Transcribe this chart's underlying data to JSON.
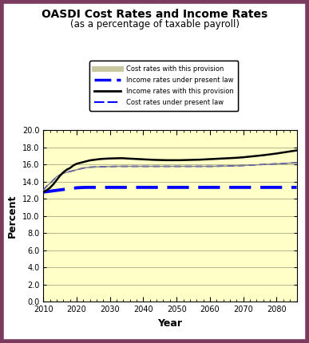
{
  "title_line1": "OASDI Cost Rates and Income Rates",
  "title_line2": "(as a percentage of taxable payroll)",
  "xlabel": "Year",
  "ylabel": "Percent",
  "xlim": [
    2010,
    2086
  ],
  "ylim": [
    0.0,
    20.0
  ],
  "yticks": [
    0.0,
    2.0,
    4.0,
    6.0,
    8.0,
    10.0,
    12.0,
    14.0,
    16.0,
    18.0,
    20.0
  ],
  "xticks": [
    2010,
    2020,
    2030,
    2040,
    2050,
    2060,
    2070,
    2080
  ],
  "plot_bg": "#FFFFC8",
  "outer_bg": "#ffffff",
  "border_color": "#7b3b5e",
  "legend_labels": [
    "Cost rates with this provision",
    "Income rates under present law",
    "Income rates with this provision",
    "Cost rates under present law"
  ],
  "years": [
    2010,
    2011,
    2012,
    2013,
    2014,
    2015,
    2016,
    2017,
    2018,
    2019,
    2020,
    2021,
    2022,
    2023,
    2024,
    2025,
    2026,
    2027,
    2028,
    2029,
    2030,
    2031,
    2032,
    2033,
    2034,
    2035,
    2036,
    2037,
    2038,
    2039,
    2040,
    2041,
    2042,
    2043,
    2044,
    2045,
    2046,
    2047,
    2048,
    2049,
    2050,
    2051,
    2052,
    2053,
    2054,
    2055,
    2056,
    2057,
    2058,
    2059,
    2060,
    2061,
    2062,
    2063,
    2064,
    2065,
    2066,
    2067,
    2068,
    2069,
    2070,
    2071,
    2072,
    2073,
    2074,
    2075,
    2076,
    2077,
    2078,
    2079,
    2080,
    2081,
    2082,
    2083,
    2084,
    2085,
    2086
  ],
  "cost_with_provision": [
    13.0,
    13.5,
    13.8,
    14.2,
    14.6,
    14.8,
    15.0,
    15.1,
    15.2,
    15.3,
    15.4,
    15.5,
    15.6,
    15.65,
    15.7,
    15.72,
    15.74,
    15.75,
    15.76,
    15.77,
    15.78,
    15.79,
    15.8,
    15.8,
    15.8,
    15.8,
    15.8,
    15.8,
    15.8,
    15.8,
    15.8,
    15.8,
    15.8,
    15.8,
    15.8,
    15.8,
    15.8,
    15.8,
    15.8,
    15.8,
    15.8,
    15.8,
    15.8,
    15.8,
    15.8,
    15.8,
    15.8,
    15.8,
    15.8,
    15.8,
    15.8,
    15.8,
    15.81,
    15.82,
    15.83,
    15.84,
    15.85,
    15.86,
    15.87,
    15.88,
    15.9,
    15.92,
    15.94,
    15.96,
    15.98,
    16.0,
    16.02,
    16.04,
    16.06,
    16.08,
    16.1,
    16.12,
    16.14,
    16.16,
    16.18,
    16.2,
    16.22
  ],
  "income_under_present_law": [
    12.8,
    12.85,
    12.9,
    12.95,
    13.0,
    13.05,
    13.1,
    13.15,
    13.2,
    13.25,
    13.3,
    13.32,
    13.34,
    13.35,
    13.35,
    13.35,
    13.35,
    13.35,
    13.35,
    13.35,
    13.35,
    13.35,
    13.35,
    13.35,
    13.35,
    13.35,
    13.35,
    13.35,
    13.35,
    13.35,
    13.35,
    13.35,
    13.35,
    13.35,
    13.35,
    13.35,
    13.35,
    13.35,
    13.35,
    13.35,
    13.35,
    13.35,
    13.35,
    13.35,
    13.35,
    13.35,
    13.35,
    13.35,
    13.35,
    13.35,
    13.35,
    13.35,
    13.35,
    13.35,
    13.35,
    13.35,
    13.35,
    13.35,
    13.35,
    13.35,
    13.35,
    13.35,
    13.35,
    13.35,
    13.35,
    13.35,
    13.35,
    13.35,
    13.35,
    13.35,
    13.35,
    13.35,
    13.35,
    13.35,
    13.35,
    13.35,
    13.35
  ],
  "income_with_provision": [
    12.8,
    13.0,
    13.3,
    13.7,
    14.2,
    14.7,
    15.1,
    15.4,
    15.6,
    15.9,
    16.1,
    16.2,
    16.3,
    16.4,
    16.5,
    16.55,
    16.6,
    16.65,
    16.68,
    16.7,
    16.72,
    16.73,
    16.74,
    16.75,
    16.75,
    16.72,
    16.7,
    16.68,
    16.66,
    16.64,
    16.62,
    16.6,
    16.58,
    16.56,
    16.55,
    16.54,
    16.53,
    16.52,
    16.52,
    16.52,
    16.52,
    16.52,
    16.53,
    16.54,
    16.55,
    16.56,
    16.57,
    16.58,
    16.6,
    16.62,
    16.64,
    16.66,
    16.68,
    16.7,
    16.72,
    16.74,
    16.76,
    16.78,
    16.8,
    16.83,
    16.86,
    16.9,
    16.94,
    16.98,
    17.02,
    17.06,
    17.1,
    17.15,
    17.2,
    17.25,
    17.3,
    17.36,
    17.42,
    17.48,
    17.54,
    17.6,
    17.66
  ],
  "cost_under_present_law": [
    13.0,
    13.5,
    13.8,
    14.2,
    14.6,
    14.8,
    15.0,
    15.1,
    15.2,
    15.3,
    15.4,
    15.5,
    15.6,
    15.65,
    15.7,
    15.72,
    15.74,
    15.75,
    15.76,
    15.77,
    15.78,
    15.79,
    15.8,
    15.8,
    15.8,
    15.8,
    15.8,
    15.8,
    15.8,
    15.8,
    15.8,
    15.8,
    15.8,
    15.8,
    15.8,
    15.8,
    15.8,
    15.8,
    15.8,
    15.8,
    15.8,
    15.8,
    15.8,
    15.8,
    15.8,
    15.8,
    15.8,
    15.8,
    15.8,
    15.8,
    15.8,
    15.8,
    15.81,
    15.82,
    15.83,
    15.84,
    15.85,
    15.86,
    15.87,
    15.88,
    15.9,
    15.92,
    15.94,
    15.96,
    15.98,
    16.0,
    16.02,
    16.04,
    16.06,
    16.08,
    16.1,
    16.12,
    16.14,
    16.16,
    16.18,
    16.2,
    16.22
  ]
}
